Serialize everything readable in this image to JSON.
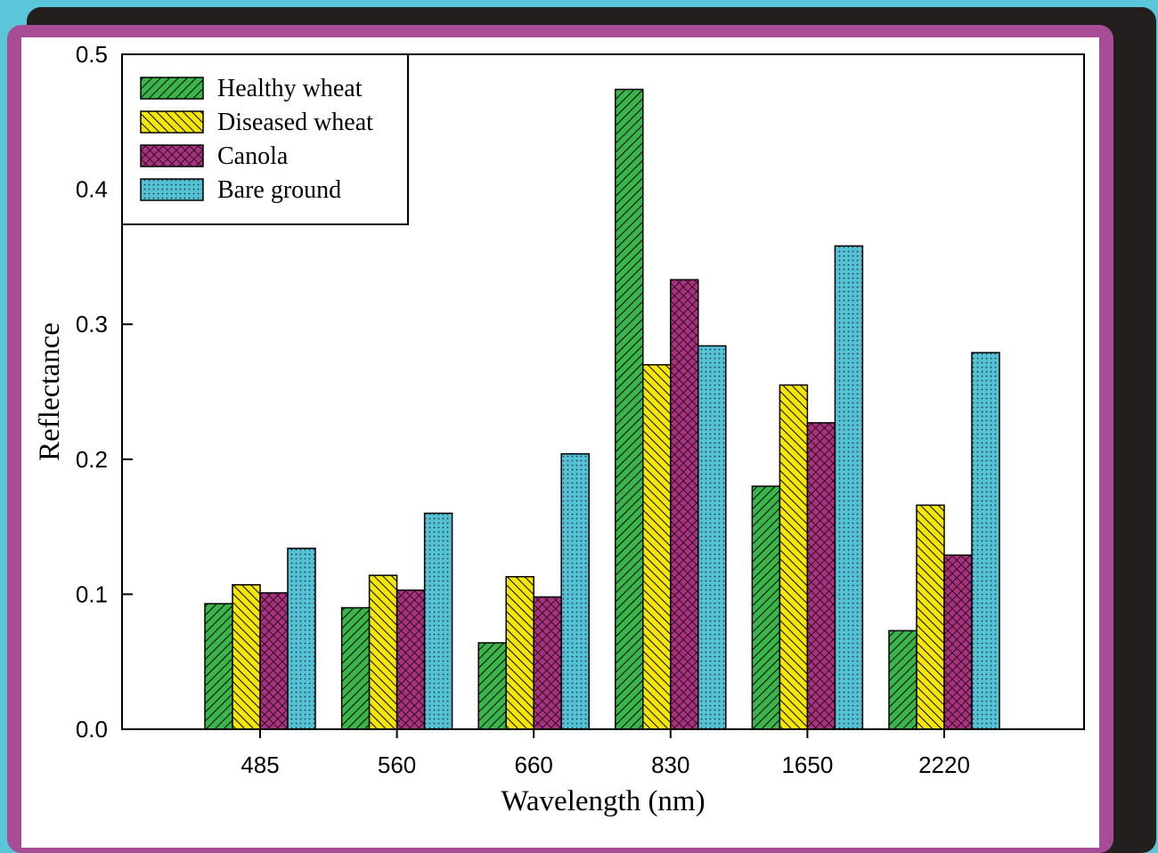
{
  "chart_data": {
    "type": "bar",
    "xlabel": "Wavelength (nm)",
    "ylabel": "Reflectance",
    "categories": [
      "485",
      "560",
      "660",
      "830",
      "1650",
      "2220"
    ],
    "ylim": [
      0,
      0.5
    ],
    "yticks": [
      "0.0",
      "0.1",
      "0.2",
      "0.3",
      "0.4",
      "0.5"
    ],
    "legend_position": "top-left",
    "series": [
      {
        "name": "Healthy wheat",
        "values": [
          0.093,
          0.09,
          0.064,
          0.474,
          0.18,
          0.073
        ],
        "color": "#3ab54a",
        "pattern": "diag-right"
      },
      {
        "name": "Diseased wheat",
        "values": [
          0.107,
          0.114,
          0.113,
          0.27,
          0.255,
          0.166
        ],
        "color": "#f4e600",
        "pattern": "diag-left"
      },
      {
        "name": "Canola",
        "values": [
          0.101,
          0.103,
          0.098,
          0.333,
          0.227,
          0.129
        ],
        "color": "#a8327e",
        "pattern": "crosshatch"
      },
      {
        "name": "Bare ground",
        "values": [
          0.134,
          0.16,
          0.204,
          0.284,
          0.358,
          0.279
        ],
        "color": "#55c1d4",
        "pattern": "dots"
      }
    ]
  }
}
